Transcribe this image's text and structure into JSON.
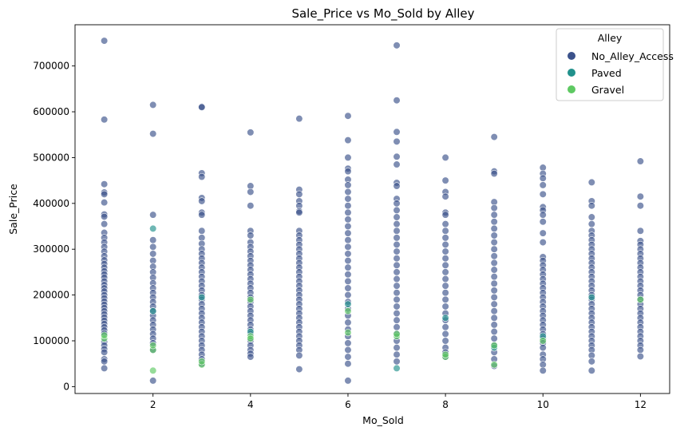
{
  "chart_data": {
    "type": "scatter",
    "title": "Sale_Price vs Mo_Sold by Alley",
    "xlabel": "Mo_Sold",
    "ylabel": "Sale_Price",
    "xlim": [
      0.4,
      12.6
    ],
    "ylim": [
      -15000,
      790000
    ],
    "xticks": [
      2,
      4,
      6,
      8,
      10,
      12
    ],
    "yticks": [
      0,
      100000,
      200000,
      300000,
      400000,
      500000,
      600000,
      700000
    ],
    "grid": false,
    "legend": {
      "title": "Alley",
      "placement": "top-right"
    },
    "series": [
      {
        "name": "No_Alley_Access",
        "color": "#3b528b",
        "columns": [
          {
            "x": 1,
            "values": [
              755000,
              583000,
              442000,
              424000,
              420000,
              402000,
              376000,
              371000,
              355000,
              336000,
              325000,
              315000,
              305000,
              295000,
              285000,
              276000,
              268000,
              260000,
              252000,
              245000,
              238000,
              230000,
              222000,
              215000,
              208000,
              200000,
              193000,
              186000,
              179000,
              172000,
              165000,
              158000,
              151000,
              144000,
              137000,
              130000,
              123000,
              116000,
              98000,
              90000,
              82000,
              75000,
              60000,
              55000,
              40000
            ]
          },
          {
            "x": 2,
            "values": [
              615000,
              552000,
              375000,
              320000,
              305000,
              290000,
              275000,
              262000,
              250000,
              238000,
              226000,
              215000,
              205000,
              195000,
              185000,
              175000,
              165000,
              155000,
              145000,
              135000,
              125000,
              115000,
              105000,
              95000,
              80000,
              13000
            ]
          },
          {
            "x": 3,
            "values": [
              611000,
              610000,
              466000,
              458000,
              412000,
              405000,
              380000,
              375000,
              340000,
              325000,
              312000,
              300000,
              290000,
              280000,
              270000,
              260000,
              250000,
              240000,
              230000,
              220000,
              210000,
              200000,
              190000,
              180000,
              170000,
              160000,
              150000,
              140000,
              130000,
              120000,
              110000,
              100000,
              90000,
              80000,
              70000,
              60000,
              50000
            ]
          },
          {
            "x": 4,
            "values": [
              555000,
              438000,
              425000,
              395000,
              340000,
              330000,
              315000,
              305000,
              295000,
              285000,
              275000,
              265000,
              255000,
              245000,
              235000,
              225000,
              215000,
              205000,
              195000,
              185000,
              175000,
              165000,
              155000,
              145000,
              135000,
              125000,
              115000,
              100000,
              90000,
              80000,
              72000,
              65000
            ]
          },
          {
            "x": 5,
            "values": [
              585000,
              430000,
              420000,
              405000,
              395000,
              383000,
              380000,
              340000,
              330000,
              320000,
              310000,
              300000,
              290000,
              280000,
              270000,
              260000,
              250000,
              240000,
              230000,
              220000,
              210000,
              200000,
              190000,
              180000,
              170000,
              160000,
              150000,
              140000,
              130000,
              120000,
              110000,
              100000,
              90000,
              80000,
              68000,
              38000
            ]
          },
          {
            "x": 6,
            "values": [
              591000,
              538000,
              500000,
              476000,
              470000,
              452000,
              440000,
              425000,
              410000,
              395000,
              380000,
              365000,
              350000,
              335000,
              320000,
              305000,
              290000,
              275000,
              260000,
              245000,
              230000,
              215000,
              200000,
              185000,
              170000,
              155000,
              140000,
              125000,
              110000,
              95000,
              80000,
              65000,
              50000,
              13000
            ]
          },
          {
            "x": 7,
            "values": [
              745000,
              625000,
              556000,
              535000,
              502000,
              485000,
              445000,
              438000,
              410000,
              400000,
              385000,
              370000,
              355000,
              340000,
              325000,
              310000,
              295000,
              280000,
              265000,
              250000,
              235000,
              220000,
              205000,
              190000,
              175000,
              160000,
              145000,
              130000,
              115000,
              100000,
              85000,
              70000,
              55000
            ]
          },
          {
            "x": 8,
            "values": [
              500000,
              450000,
              425000,
              415000,
              380000,
              375000,
              355000,
              340000,
              325000,
              310000,
              295000,
              280000,
              265000,
              250000,
              235000,
              220000,
              205000,
              190000,
              175000,
              160000,
              145000,
              130000,
              115000,
              100000,
              85000,
              75000,
              65000
            ]
          },
          {
            "x": 9,
            "values": [
              545000,
              470000,
              465000,
              403000,
              390000,
              375000,
              360000,
              345000,
              330000,
              315000,
              300000,
              285000,
              270000,
              255000,
              240000,
              225000,
              210000,
              195000,
              180000,
              165000,
              150000,
              135000,
              120000,
              105000,
              90000,
              75000,
              60000,
              45000
            ]
          },
          {
            "x": 10,
            "values": [
              478000,
              465000,
              455000,
              440000,
              420000,
              392000,
              385000,
              375000,
              360000,
              335000,
              315000,
              283000,
              275000,
              265000,
              255000,
              245000,
              235000,
              225000,
              215000,
              205000,
              195000,
              185000,
              175000,
              165000,
              155000,
              145000,
              135000,
              125000,
              115000,
              105000,
              95000,
              85000,
              70000,
              60000,
              48000,
              35000
            ]
          },
          {
            "x": 11,
            "values": [
              446000,
              405000,
              395000,
              370000,
              355000,
              340000,
              330000,
              320000,
              310000,
              300000,
              290000,
              280000,
              270000,
              260000,
              250000,
              240000,
              230000,
              220000,
              210000,
              200000,
              190000,
              180000,
              170000,
              160000,
              150000,
              140000,
              130000,
              120000,
              110000,
              100000,
              90000,
              80000,
              68000,
              55000,
              35000
            ]
          },
          {
            "x": 12,
            "values": [
              492000,
              415000,
              395000,
              340000,
              318000,
              310000,
              300000,
              290000,
              280000,
              270000,
              260000,
              250000,
              240000,
              230000,
              220000,
              210000,
              200000,
              190000,
              180000,
              170000,
              160000,
              150000,
              140000,
              130000,
              120000,
              110000,
              100000,
              90000,
              80000,
              66000
            ]
          }
        ]
      },
      {
        "name": "Paved",
        "color": "#21918c",
        "points": [
          [
            2,
            345000
          ],
          [
            2,
            165000
          ],
          [
            3,
            195000
          ],
          [
            4,
            120000
          ],
          [
            6,
            180000
          ],
          [
            7,
            40000
          ],
          [
            8,
            150000
          ],
          [
            9,
            85000
          ],
          [
            10,
            110000
          ],
          [
            11,
            195000
          ]
        ]
      },
      {
        "name": "Gravel",
        "color": "#5ec962",
        "points": [
          [
            1,
            105000
          ],
          [
            1,
            112000
          ],
          [
            2,
            35000
          ],
          [
            2,
            80000
          ],
          [
            2,
            90000
          ],
          [
            3,
            48000
          ],
          [
            3,
            55000
          ],
          [
            4,
            110000
          ],
          [
            4,
            105000
          ],
          [
            4,
            190000
          ],
          [
            6,
            165000
          ],
          [
            6,
            118000
          ],
          [
            7,
            110000
          ],
          [
            7,
            115000
          ],
          [
            8,
            65000
          ],
          [
            8,
            70000
          ],
          [
            9,
            48000
          ],
          [
            9,
            90000
          ],
          [
            10,
            100000
          ],
          [
            12,
            190000
          ]
        ]
      }
    ]
  }
}
